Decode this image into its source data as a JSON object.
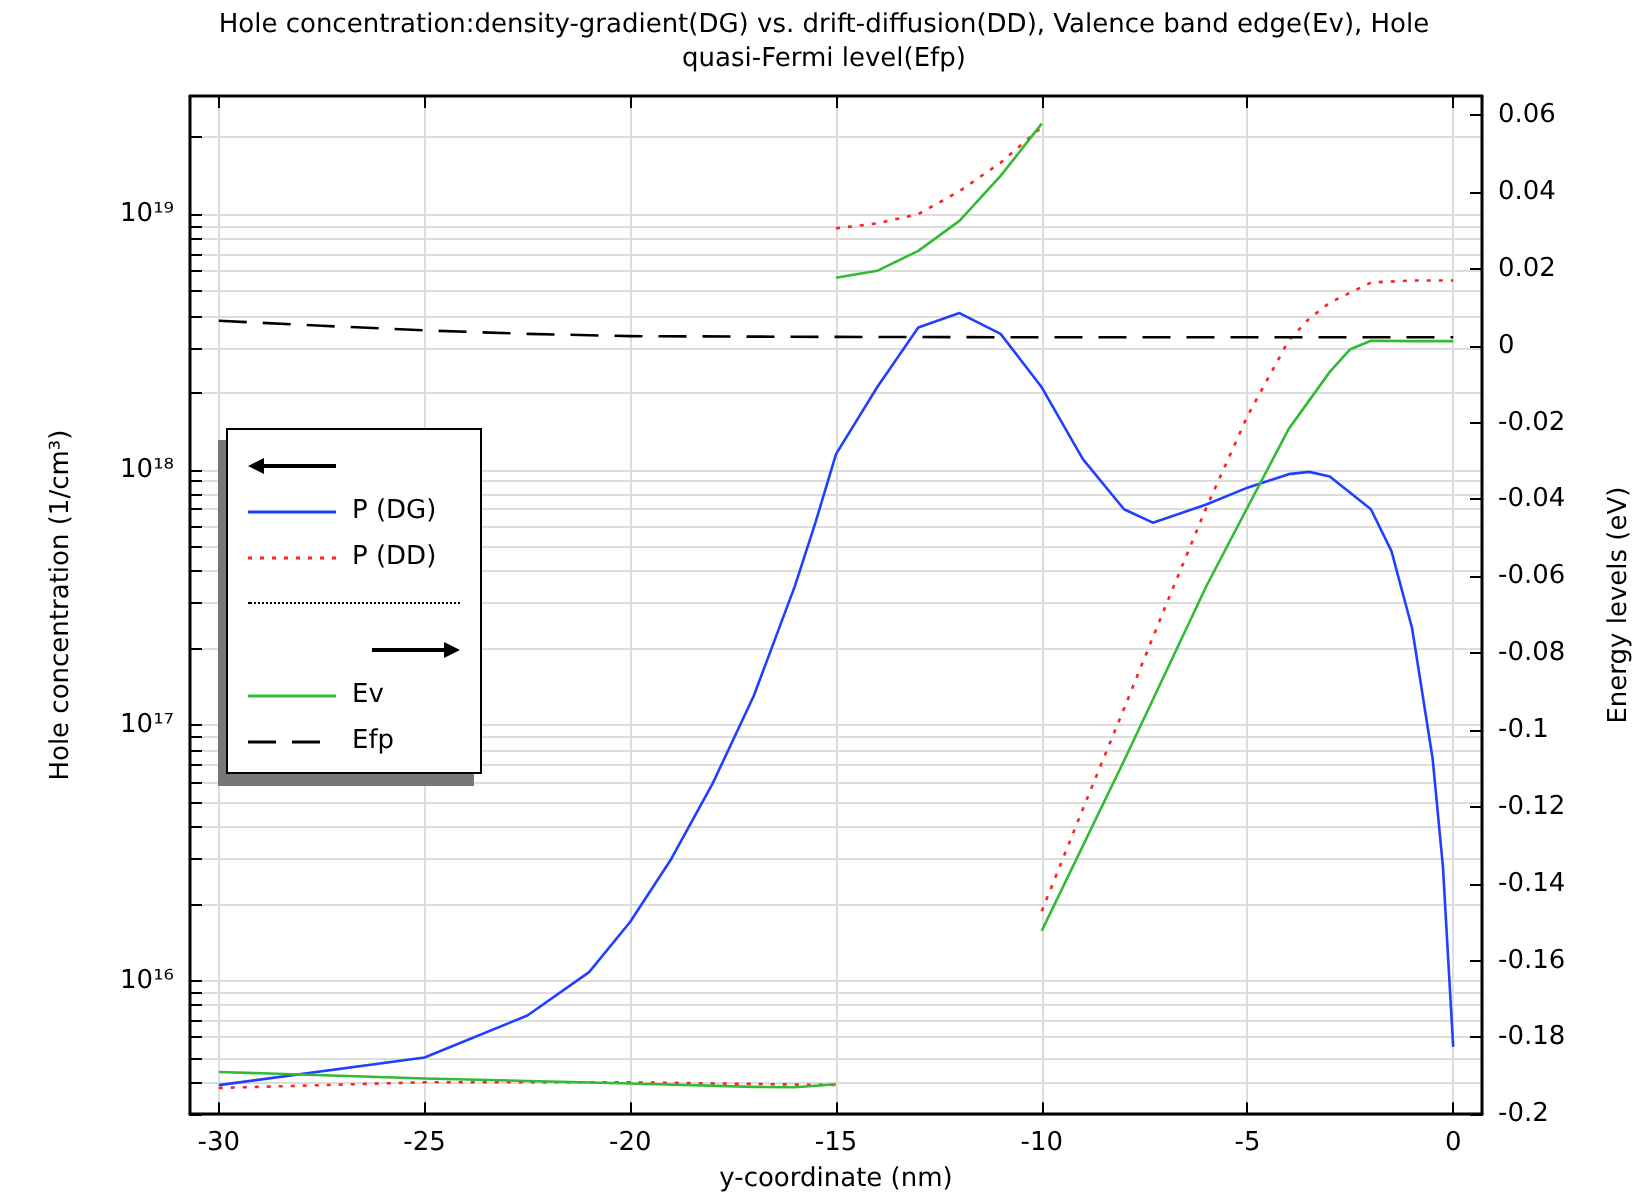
{
  "chart_data": {
    "type": "line",
    "title": "Hole concentration:density-gradient(DG) vs. drift-diffusion(DD), Valence band edge(Ev), Hole quasi-Fermi level(Efp)",
    "xlabel": "y-coordinate (nm)",
    "ylabel": "Hole concentration (1/cm³)",
    "y2label": "Energy levels (eV)",
    "xlim": [
      -30.7,
      0.7
    ],
    "xticks": [
      -30,
      -25,
      -20,
      -15,
      -10,
      -5,
      0
    ],
    "ylim": [
      3000000000000000.0,
      2.9e+19
    ],
    "yticks": [
      {
        "value": 3000000000000000.0,
        "label": null
      },
      {
        "value": 4000000000000000.0,
        "label": null
      },
      {
        "value": 5000000000000000.0,
        "label": null
      },
      {
        "value": 6000000000000000.0,
        "label": null
      },
      {
        "value": 7000000000000000.0,
        "label": null
      },
      {
        "value": 8000000000000000.0,
        "label": null
      },
      {
        "value": 9000000000000000.0,
        "label": null
      },
      {
        "value": 1e+16,
        "label": "10¹⁶"
      },
      {
        "value": 2e+16,
        "label": null
      },
      {
        "value": 3e+16,
        "label": null
      },
      {
        "value": 4e+16,
        "label": null
      },
      {
        "value": 5e+16,
        "label": null
      },
      {
        "value": 6e+16,
        "label": null
      },
      {
        "value": 7e+16,
        "label": null
      },
      {
        "value": 8e+16,
        "label": null
      },
      {
        "value": 9e+16,
        "label": null
      },
      {
        "value": 1e+17,
        "label": "10¹⁷"
      },
      {
        "value": 2e+17,
        "label": null
      },
      {
        "value": 3e+17,
        "label": null
      },
      {
        "value": 4e+17,
        "label": null
      },
      {
        "value": 5e+17,
        "label": null
      },
      {
        "value": 6e+17,
        "label": null
      },
      {
        "value": 7e+17,
        "label": null
      },
      {
        "value": 8e+17,
        "label": null
      },
      {
        "value": 9e+17,
        "label": null
      },
      {
        "value": 1e+18,
        "label": "10¹⁸"
      },
      {
        "value": 2e+18,
        "label": null
      },
      {
        "value": 3e+18,
        "label": null
      },
      {
        "value": 4e+18,
        "label": null
      },
      {
        "value": 5e+18,
        "label": null
      },
      {
        "value": 6e+18,
        "label": null
      },
      {
        "value": 7e+18,
        "label": null
      },
      {
        "value": 8e+18,
        "label": null
      },
      {
        "value": 9e+18,
        "label": null
      },
      {
        "value": 1e+19,
        "label": "10¹⁹"
      },
      {
        "value": 2e+19,
        "label": null
      }
    ],
    "y2lim": [
      -0.2,
      0.065
    ],
    "y2ticks": [
      -0.2,
      -0.18,
      -0.16,
      -0.14,
      -0.12,
      -0.1,
      -0.08,
      -0.06,
      -0.04,
      -0.02,
      0,
      0.02,
      0.04,
      0.06
    ],
    "log": "y",
    "grid": true,
    "legend": "left",
    "marker": "none",
    "series": [
      {
        "name": "P (DG)",
        "color": "#2040ff",
        "line_style": "solid",
        "x": [
          -30,
          -25,
          -22.5,
          -21,
          -20,
          -19,
          -18,
          -17,
          -16,
          -15.5,
          -15,
          -14,
          -13,
          -12,
          -11,
          -10,
          -9,
          -8,
          -7.3,
          -6,
          -5,
          -4,
          -3.5,
          -3,
          -2,
          -1.5,
          -1,
          -0.5,
          -0.25,
          0
        ],
        "values": [
          3900000000000000.0,
          5000000000000000.0,
          7300000000000000.0,
          1.08e+16,
          1.7e+16,
          3e+16,
          5.9e+16,
          1.3e+17,
          3.5e+17,
          6.2e+17,
          1.15e+18,
          2.1e+18,
          3.6e+18,
          4.1e+18,
          3.4e+18,
          2.1e+18,
          1.1e+18,
          7e+17,
          6.2e+17,
          7.3e+17,
          8.5e+17,
          9.6e+17,
          9.8e+17,
          9.4e+17,
          7e+17,
          4.8e+17,
          2.4e+17,
          7.4e+16,
          2.8e+16,
          5500000000000000.0
        ]
      },
      {
        "name": "P (DD)",
        "color": "#ff2020",
        "line_style": "dotted",
        "x": [
          -30,
          -25,
          -20,
          -15,
          null,
          -15,
          -14,
          -13,
          -12,
          -11,
          -10,
          null,
          -10,
          -9,
          -8,
          -7,
          -6,
          -5,
          -4,
          -3.5,
          -3,
          -2,
          -1,
          0
        ],
        "values": [
          3800000000000000.0,
          4000000000000000.0,
          4000000000000000.0,
          3900000000000000.0,
          null,
          8.8e+18,
          9.2e+18,
          1e+19,
          1.23e+19,
          1.59e+19,
          2.19e+19,
          null,
          1.87e+16,
          4.7e+16,
          1.16e+17,
          2.9e+17,
          7.1e+17,
          1.62e+18,
          3.2e+18,
          3.9e+18,
          4.5e+18,
          5.4e+18,
          5.5e+18,
          5.5e+18
        ]
      },
      {
        "name": "Ev",
        "color": "#33bb33",
        "line_style": "solid",
        "axis": "y2",
        "x": [
          -30,
          -25,
          -20,
          -17,
          -16,
          -15,
          null,
          -15,
          -14,
          -13,
          -12,
          -11,
          -10,
          null,
          -10,
          -8,
          -6,
          -5,
          -4,
          -3,
          -2.5,
          -2,
          -1,
          0
        ],
        "values": [
          -0.189,
          -0.1907,
          -0.192,
          -0.1929,
          -0.193,
          -0.1922,
          null,
          0.0177,
          0.0195,
          0.0247,
          0.0325,
          0.0442,
          0.0578,
          null,
          -0.1523,
          -0.108,
          -0.0626,
          -0.0421,
          -0.0217,
          -0.0068,
          -0.0009,
          0.0013,
          0.0012,
          0.0012
        ]
      },
      {
        "name": "Efp",
        "color": "#000000",
        "line_style": "dashed",
        "axis": "y2",
        "x": [
          -30,
          -27.5,
          -25,
          -22.5,
          -20,
          -15,
          -10,
          0
        ],
        "values": [
          0.0065,
          0.0052,
          0.004,
          0.0031,
          0.0025,
          0.0023,
          0.0022,
          0.0022
        ]
      }
    ]
  }
}
